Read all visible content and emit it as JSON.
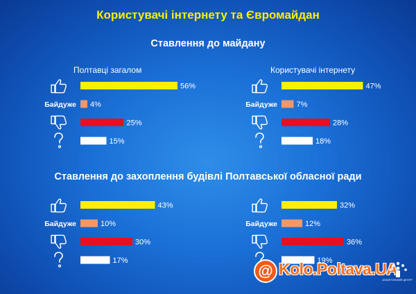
{
  "title": "Користувачі інтернету  та Євромайдан",
  "watermark": {
    "text": "Kolo.Poltava.UA",
    "symbol": "@",
    "logo_text": "АНАЛІТИЧНИЙ ЦЕНТР"
  },
  "colors": {
    "background": "#1a6fd6",
    "title": "#ffef00",
    "support": "#ffef00",
    "indifferent": "#f0986a",
    "against": "#e8101e",
    "unknown": "#ffffff"
  },
  "chart_data": [
    {
      "type": "bar",
      "title": "Ставлення до майдану",
      "panel": "Полтавці загалом",
      "categories": [
        "support-icon",
        "Байдуже",
        "against-icon",
        "unknown-icon"
      ],
      "values": [
        56,
        4,
        25,
        15
      ],
      "value_labels": [
        "56%",
        "4%",
        "25%",
        "15%"
      ]
    },
    {
      "type": "bar",
      "title": "Ставлення до майдану",
      "panel": "Користувачі інтернету",
      "categories": [
        "support-icon",
        "Байдуже",
        "against-icon",
        "unknown-icon"
      ],
      "values": [
        47,
        7,
        28,
        18
      ],
      "value_labels": [
        "47%",
        "7%",
        "28%",
        "18%"
      ]
    },
    {
      "type": "bar",
      "title": "Ставлення до захоплення будівлі Полтавської обласної ради",
      "panel": "",
      "categories": [
        "support-icon",
        "Байдуже",
        "against-icon",
        "unknown-icon"
      ],
      "values": [
        43,
        10,
        30,
        17
      ],
      "value_labels": [
        "43%",
        "10%",
        "30%",
        "17%"
      ]
    },
    {
      "type": "bar",
      "title": "Ставлення до захоплення будівлі Полтавської обласної ради",
      "panel": "",
      "categories": [
        "support-icon",
        "Байдуже",
        "against-icon",
        "unknown-icon"
      ],
      "values": [
        32,
        12,
        36,
        19
      ],
      "value_labels": [
        "32%",
        "12%",
        "36%",
        "19%"
      ]
    }
  ]
}
